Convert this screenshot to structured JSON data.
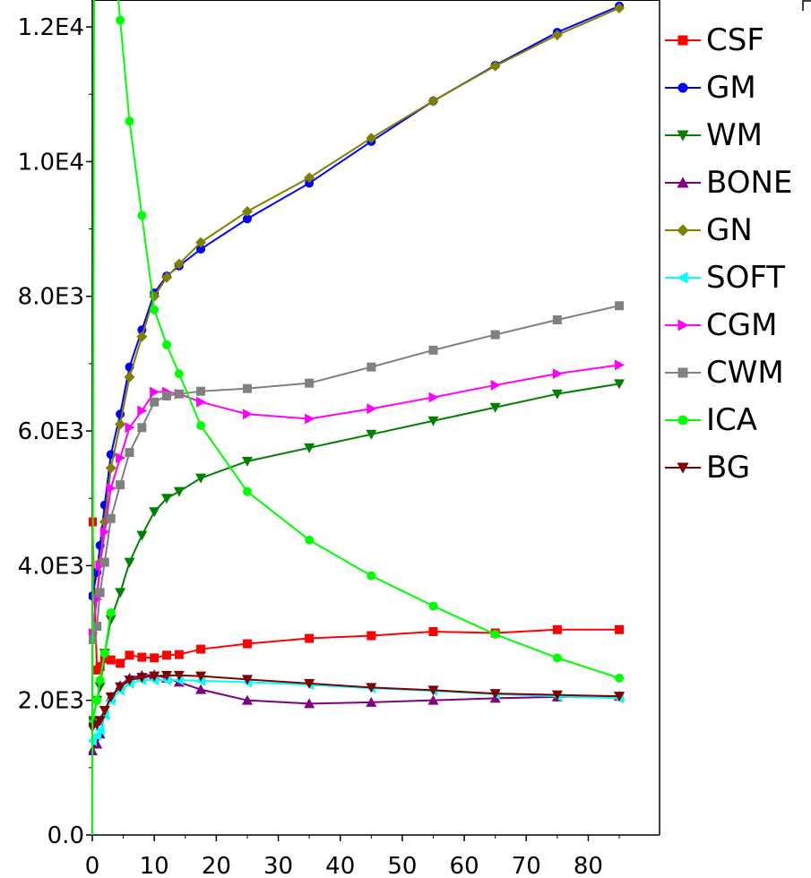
{
  "chart_data": {
    "type": "line",
    "title": "",
    "xlabel": "",
    "ylabel": "",
    "xlim": [
      0,
      91.5
    ],
    "ylim": [
      0,
      12400
    ],
    "xticks": [
      0,
      10,
      20,
      30,
      40,
      50,
      60,
      70,
      80
    ],
    "xtick_labels": [
      "0",
      "10",
      "20",
      "30",
      "40",
      "50",
      "60",
      "70",
      "80"
    ],
    "yticks": [
      0,
      2000,
      4000,
      6000,
      8000,
      10000,
      12000
    ],
    "ytick_labels": [
      "0.0",
      "2.0E3",
      "4.0E3",
      "6.0E3",
      "8.0E3",
      "1.0E4",
      "1.2E4"
    ],
    "grid": false,
    "legend_position": "right",
    "x": [
      0,
      0.75,
      1.25,
      2,
      3,
      4.5,
      6,
      8,
      10,
      12,
      14,
      17.5,
      25,
      35,
      45,
      55,
      65,
      75,
      85
    ],
    "series": [
      {
        "name": "CSF",
        "color": "#ff0000",
        "marker": "square",
        "values": [
          4650,
          2450,
          2500,
          2620,
          2600,
          2550,
          2670,
          2640,
          2630,
          2670,
          2680,
          2760,
          2840,
          2920,
          2960,
          3020,
          3000,
          3050,
          3050
        ]
      },
      {
        "name": "GM",
        "color": "#0000ff",
        "marker": "circle",
        "values": [
          3550,
          3900,
          4300,
          4900,
          5650,
          6250,
          6950,
          7500,
          8050,
          8300,
          8450,
          8700,
          9150,
          9680,
          10300,
          10900,
          11430,
          11920,
          12310
        ]
      },
      {
        "name": "WM",
        "color": "#008000",
        "marker": "triangle-down",
        "values": [
          1700,
          2000,
          2200,
          2700,
          3200,
          3600,
          4050,
          4450,
          4800,
          5000,
          5100,
          5300,
          5550,
          5750,
          5950,
          6150,
          6350,
          6550,
          6700
        ]
      },
      {
        "name": "BONE",
        "color": "#800080",
        "marker": "triangle-up",
        "values": [
          1250,
          1350,
          1500,
          1800,
          2050,
          2220,
          2330,
          2370,
          2380,
          2330,
          2270,
          2160,
          2000,
          1950,
          1970,
          2000,
          2030,
          2050,
          2060
        ]
      },
      {
        "name": "GN",
        "color": "#808000",
        "marker": "diamond",
        "values": [
          3000,
          3550,
          4050,
          4650,
          5450,
          6100,
          6800,
          7400,
          8000,
          8280,
          8480,
          8800,
          9260,
          9760,
          10350,
          10900,
          11420,
          11880,
          12280
        ]
      },
      {
        "name": "SOFT",
        "color": "#00ffff",
        "marker": "triangle-left",
        "values": [
          1400,
          1480,
          1560,
          1780,
          2000,
          2150,
          2250,
          2300,
          2300,
          2300,
          2300,
          2290,
          2270,
          2230,
          2180,
          2140,
          2090,
          2060,
          2030
        ]
      },
      {
        "name": "CGM",
        "color": "#ff00ff",
        "marker": "triangle-right",
        "values": [
          3000,
          3500,
          4000,
          4500,
          5150,
          5600,
          6050,
          6300,
          6580,
          6580,
          6550,
          6430,
          6250,
          6180,
          6330,
          6500,
          6680,
          6850,
          6980
        ]
      },
      {
        "name": "CWM",
        "color": "#808080",
        "marker": "square",
        "values": [
          2900,
          3100,
          3600,
          4050,
          4700,
          5200,
          5680,
          6050,
          6430,
          6520,
          6550,
          6590,
          6630,
          6710,
          6950,
          7200,
          7430,
          7650,
          7860
        ]
      },
      {
        "name": "ICA",
        "color": "#00ff00",
        "marker": "circle",
        "values": [
          1650,
          2000,
          2300,
          2700,
          3300,
          12100,
          10600,
          9200,
          7800,
          7280,
          6850,
          6080,
          5100,
          4380,
          3850,
          3400,
          2980,
          2630,
          2330
        ]
      },
      {
        "name": "BG",
        "color": "#800000",
        "marker": "triangle-down",
        "values": [
          1600,
          1640,
          1700,
          1850,
          2050,
          2200,
          2300,
          2340,
          2360,
          2370,
          2370,
          2360,
          2310,
          2250,
          2190,
          2150,
          2100,
          2080,
          2060
        ]
      }
    ]
  }
}
